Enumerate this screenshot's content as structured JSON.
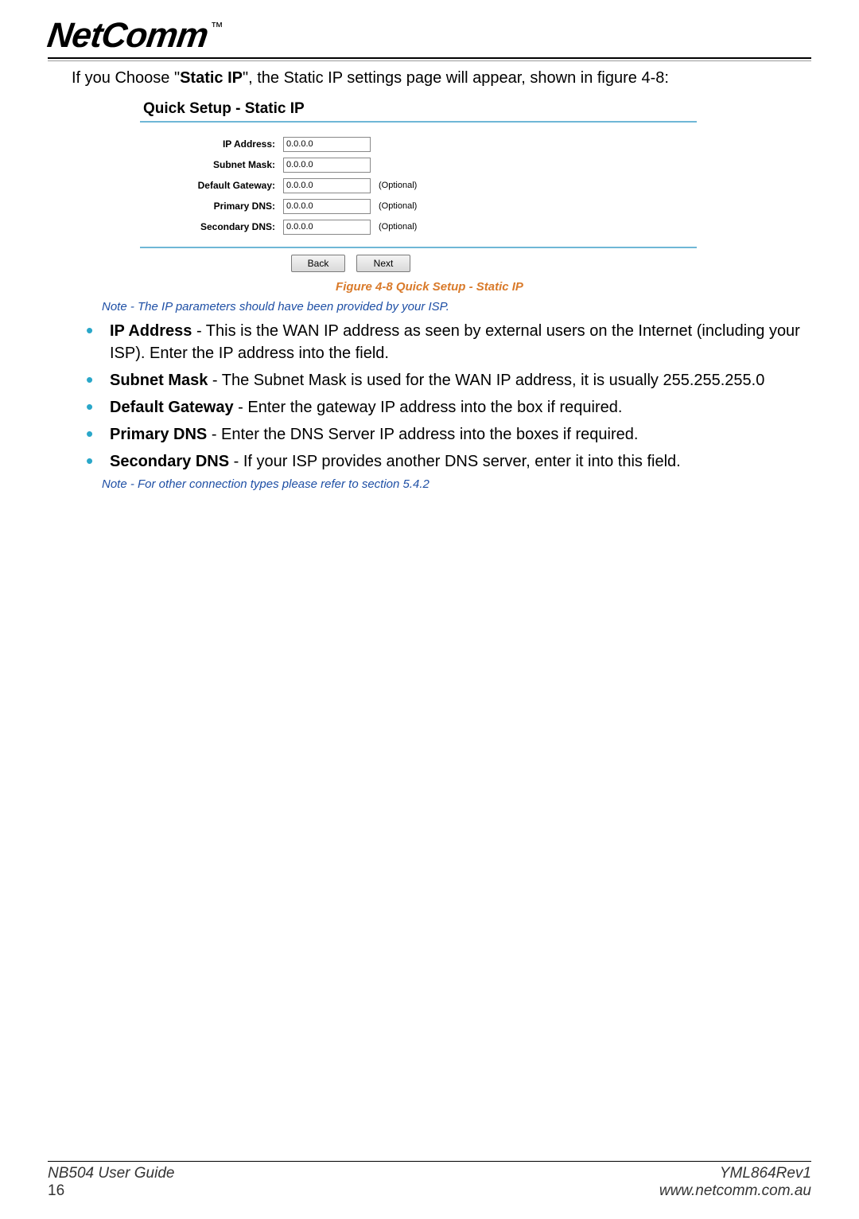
{
  "logo": {
    "brand": "NetComm",
    "tm": "™"
  },
  "intro": {
    "prefix": "If you Choose \"",
    "bold": "Static IP",
    "suffix": "\", the Static IP settings page will appear, shown in figure 4-8:"
  },
  "screenshot": {
    "title": "Quick Setup - Static IP",
    "rows": [
      {
        "label": "IP Address:",
        "value": "0.0.0.0",
        "optional": ""
      },
      {
        "label": "Subnet Mask:",
        "value": "0.0.0.0",
        "optional": ""
      },
      {
        "label": "Default Gateway:",
        "value": "0.0.0.0",
        "optional": "(Optional)"
      },
      {
        "label": "Primary DNS:",
        "value": "0.0.0.0",
        "optional": "(Optional)"
      },
      {
        "label": "Secondary DNS:",
        "value": "0.0.0.0",
        "optional": "(Optional)"
      }
    ],
    "buttons": {
      "back": "Back",
      "next": "Next"
    }
  },
  "captions": {
    "figure": "Figure 4-8 Quick Setup - Static IP",
    "note1": "Note - The IP parameters should have been provided by your ISP.",
    "note2": "Note - For other connection types please refer to section 5.4.2"
  },
  "bullets": [
    {
      "term": "IP Address",
      "rest": " - This is the WAN IP address as seen by external users on the Internet (including your ISP). Enter the IP address into the field."
    },
    {
      "term": "Subnet Mask",
      "rest": " - The Subnet Mask is used for the WAN IP address, it is usually 255.255.255.0"
    },
    {
      "term": "Default Gateway",
      "rest": " - Enter the gateway IP address into the box if required."
    },
    {
      "term": "Primary DNS",
      "rest": " - Enter the DNS Server IP address into the boxes if required."
    },
    {
      "term": "Secondary DNS",
      "rest": " - If your ISP provides another DNS server, enter it into this field."
    }
  ],
  "footer": {
    "left_top": "NB504 User Guide",
    "left_bottom": "16",
    "right_top": "YML864Rev1",
    "right_bottom": "www.netcomm.com.au"
  }
}
